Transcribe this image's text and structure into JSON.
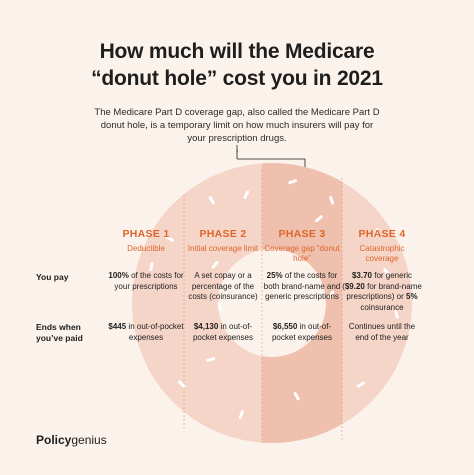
{
  "title": {
    "line1": "How much will the Medicare",
    "line2": "“donut hole” cost you in 2021"
  },
  "intro": "The Medicare Part D coverage gap, also called the Medicare Part D donut hole, is a temporary limit on how much insurers will pay for your prescription drugs.",
  "row_labels": {
    "you_pay": "You pay",
    "ends_line1": "Ends when",
    "ends_line2": "you’ve paid"
  },
  "phases": [
    {
      "title": "PHASE 1",
      "sub": "Deductible",
      "pay_bold": "100%",
      "pay_rest": " of the costs for your prescriptions",
      "end_bold": "$445",
      "end_rest": " in out-of-pocket expenses"
    },
    {
      "title": "PHASE 2",
      "sub": "Initial coverage limit",
      "pay_bold": "",
      "pay_rest": "A set copay or a percentage of the costs (coinsurance)",
      "end_bold": "$4,130",
      "end_rest": " in out-of-pocket expenses"
    },
    {
      "title": "PHASE 3",
      "sub": "Coverage gap “donut hole”",
      "pay_bold": "25%",
      "pay_rest": " of the costs for both brand-name and generic prescriptions",
      "end_bold": "$6,550",
      "end_rest": " in out-of-pocket expenses"
    },
    {
      "title": "PHASE 4",
      "sub": "Catastrophic coverage",
      "pay_bold": "$3.70",
      "pay_mid": " for generic (",
      "pay_bold2": "$9.20",
      "pay_mid2": " for brand-name prescriptions) or ",
      "pay_bold3": "5%",
      "pay_rest": " coinsurance",
      "end_bold": "",
      "end_rest": "Continues until the end of the year"
    }
  ],
  "logo": {
    "bold": "Policy",
    "rest": "genius"
  },
  "colors": {
    "background": "#fbf2ec",
    "accent": "#e0652d",
    "donut": "#f5d5c7",
    "highlight": "#eec0ad"
  }
}
